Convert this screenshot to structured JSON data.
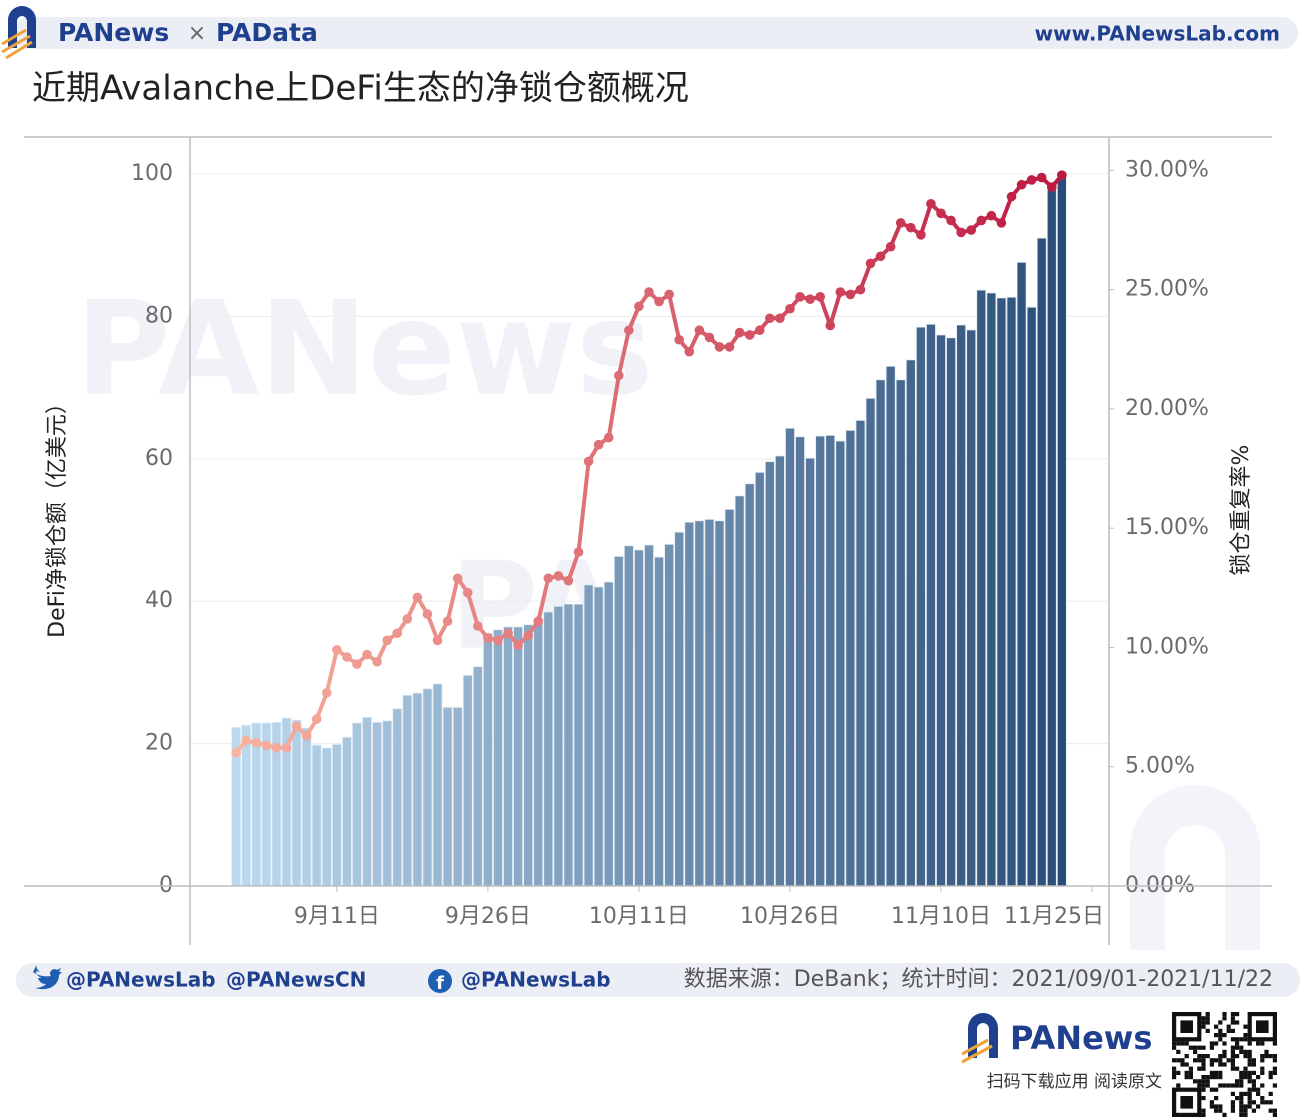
{
  "header": {
    "brand_left": "PANews",
    "times": "×",
    "brand_right": "PAData",
    "url": "www.PANewsLab.com"
  },
  "chart_data": {
    "type": "bar_line",
    "title": "近期Avalanche上DeFi生态的净锁仓额概况",
    "y_label": "DeFi净锁仓额（亿美元）",
    "y2_label": "锁仓重复率%",
    "x": [
      "2021-09-01",
      "2021-09-02",
      "2021-09-03",
      "2021-09-04",
      "2021-09-05",
      "2021-09-06",
      "2021-09-07",
      "2021-09-08",
      "2021-09-09",
      "2021-09-10",
      "2021-09-11",
      "2021-09-12",
      "2021-09-13",
      "2021-09-14",
      "2021-09-15",
      "2021-09-16",
      "2021-09-17",
      "2021-09-18",
      "2021-09-19",
      "2021-09-20",
      "2021-09-21",
      "2021-09-22",
      "2021-09-23",
      "2021-09-24",
      "2021-09-25",
      "2021-09-26",
      "2021-09-27",
      "2021-09-28",
      "2021-09-29",
      "2021-09-30",
      "2021-10-01",
      "2021-10-02",
      "2021-10-03",
      "2021-10-04",
      "2021-10-05",
      "2021-10-06",
      "2021-10-07",
      "2021-10-08",
      "2021-10-09",
      "2021-10-10",
      "2021-10-11",
      "2021-10-12",
      "2021-10-13",
      "2021-10-14",
      "2021-10-15",
      "2021-10-16",
      "2021-10-17",
      "2021-10-18",
      "2021-10-19",
      "2021-10-20",
      "2021-10-21",
      "2021-10-22",
      "2021-10-23",
      "2021-10-24",
      "2021-10-25",
      "2021-10-26",
      "2021-10-27",
      "2021-10-28",
      "2021-10-29",
      "2021-10-30",
      "2021-10-31",
      "2021-11-01",
      "2021-11-02",
      "2021-11-03",
      "2021-11-04",
      "2021-11-05",
      "2021-11-06",
      "2021-11-07",
      "2021-11-08",
      "2021-11-09",
      "2021-11-10",
      "2021-11-11",
      "2021-11-12",
      "2021-11-13",
      "2021-11-14",
      "2021-11-15",
      "2021-11-16",
      "2021-11-17",
      "2021-11-18",
      "2021-11-19",
      "2021-11-20",
      "2021-11-21",
      "2021-11-22"
    ],
    "series": [
      {
        "type": "bar",
        "color": [
          "#bcd9ee",
          "#2a4d78"
        ],
        "values": [
          22.3,
          22.6,
          22.9,
          22.9,
          23,
          23.6,
          23.3,
          22.2,
          19.8,
          19.4,
          19.9,
          20.9,
          22.9,
          23.7,
          23,
          23.2,
          24.9,
          26.8,
          27.1,
          27.7,
          28.4,
          25.1,
          25.1,
          29.6,
          30.8,
          35.5,
          36,
          36.4,
          36.4,
          36.7,
          37.4,
          38.5,
          39.3,
          39.6,
          39.6,
          42.3,
          42,
          42.7,
          46.3,
          47.8,
          47.2,
          47.9,
          46.2,
          48,
          49.7,
          51.1,
          51.3,
          51.5,
          51.3,
          52.9,
          54.8,
          56.5,
          58.1,
          59.6,
          60.4,
          64.3,
          63.1,
          60.1,
          63.2,
          63.3,
          62.5,
          64,
          65.4,
          68.5,
          71.1,
          73,
          71.1,
          73.9,
          78.5,
          78.9,
          77.4,
          77,
          78.8,
          78.1,
          83.7,
          83.3,
          82.6,
          82.7,
          87.6,
          81.3,
          91,
          97.8,
          100.3
        ]
      },
      {
        "type": "line",
        "axis": "y2",
        "color": [
          "#f8b3a0",
          "#bd1840"
        ],
        "values": [
          5.6,
          6.1,
          6.0,
          5.9,
          5.8,
          5.8,
          6.7,
          6.3,
          7.0,
          8.1,
          9.9,
          9.6,
          9.3,
          9.7,
          9.4,
          10.3,
          10.6,
          11.2,
          12.1,
          11.4,
          10.3,
          11.1,
          12.9,
          12.3,
          10.9,
          10.4,
          10.3,
          10.6,
          10.1,
          10.5,
          11.1,
          12.9,
          13.0,
          12.8,
          14.0,
          17.8,
          18.5,
          18.8,
          21.4,
          23.3,
          24.3,
          24.9,
          24.5,
          24.8,
          22.9,
          22.4,
          23.3,
          23.0,
          22.6,
          22.6,
          23.2,
          23.1,
          23.3,
          23.8,
          23.8,
          24.2,
          24.7,
          24.6,
          24.7,
          23.5,
          24.9,
          24.8,
          25.0,
          26.1,
          26.4,
          26.8,
          27.8,
          27.6,
          27.3,
          28.6,
          28.2,
          27.9,
          27.4,
          27.5,
          27.9,
          28.1,
          27.8,
          28.9,
          29.4,
          29.6,
          29.7,
          29.3,
          29.8
        ]
      }
    ],
    "xlim": [
      "2021-08-27T10:00",
      "2021-11-26T14:00"
    ],
    "xticks": [
      {
        "value": "2021-09-11",
        "label": "9月11日"
      },
      {
        "value": "2021-09-26",
        "label": "9月26日"
      },
      {
        "value": "2021-10-11",
        "label": "10月11日"
      },
      {
        "value": "2021-10-26",
        "label": "10月26日"
      },
      {
        "value": "2021-11-10",
        "label": "11月10日"
      },
      {
        "value": "2021-11-25",
        "label": "11月25日"
      }
    ],
    "ylim": [
      0,
      105.2
    ],
    "yticks": [
      0,
      20,
      40,
      60,
      80,
      100
    ],
    "y2lim": [
      0,
      31.4
    ],
    "y2ticks": [
      {
        "value": 0,
        "label": "0.00%"
      },
      {
        "value": 5,
        "label": "5.00%"
      },
      {
        "value": 10,
        "label": "10.00%"
      },
      {
        "value": 15,
        "label": "15.00%"
      },
      {
        "value": 20,
        "label": "20.00%"
      },
      {
        "value": 25,
        "label": "25.00%"
      },
      {
        "value": 30,
        "label": "30.00%"
      }
    ],
    "grid": true
  },
  "watermarks": [
    "PANews",
    "PAData"
  ],
  "footer": {
    "twitter_1": "@PANewsLab",
    "twitter_2": "@PANewsCN",
    "facebook": "@PANewsLab",
    "source": "数据来源：DeBank；统计时间：2021/09/01-2021/11/22",
    "brand": "PANews",
    "qr_caption": "扫码下载应用  阅读原文"
  }
}
